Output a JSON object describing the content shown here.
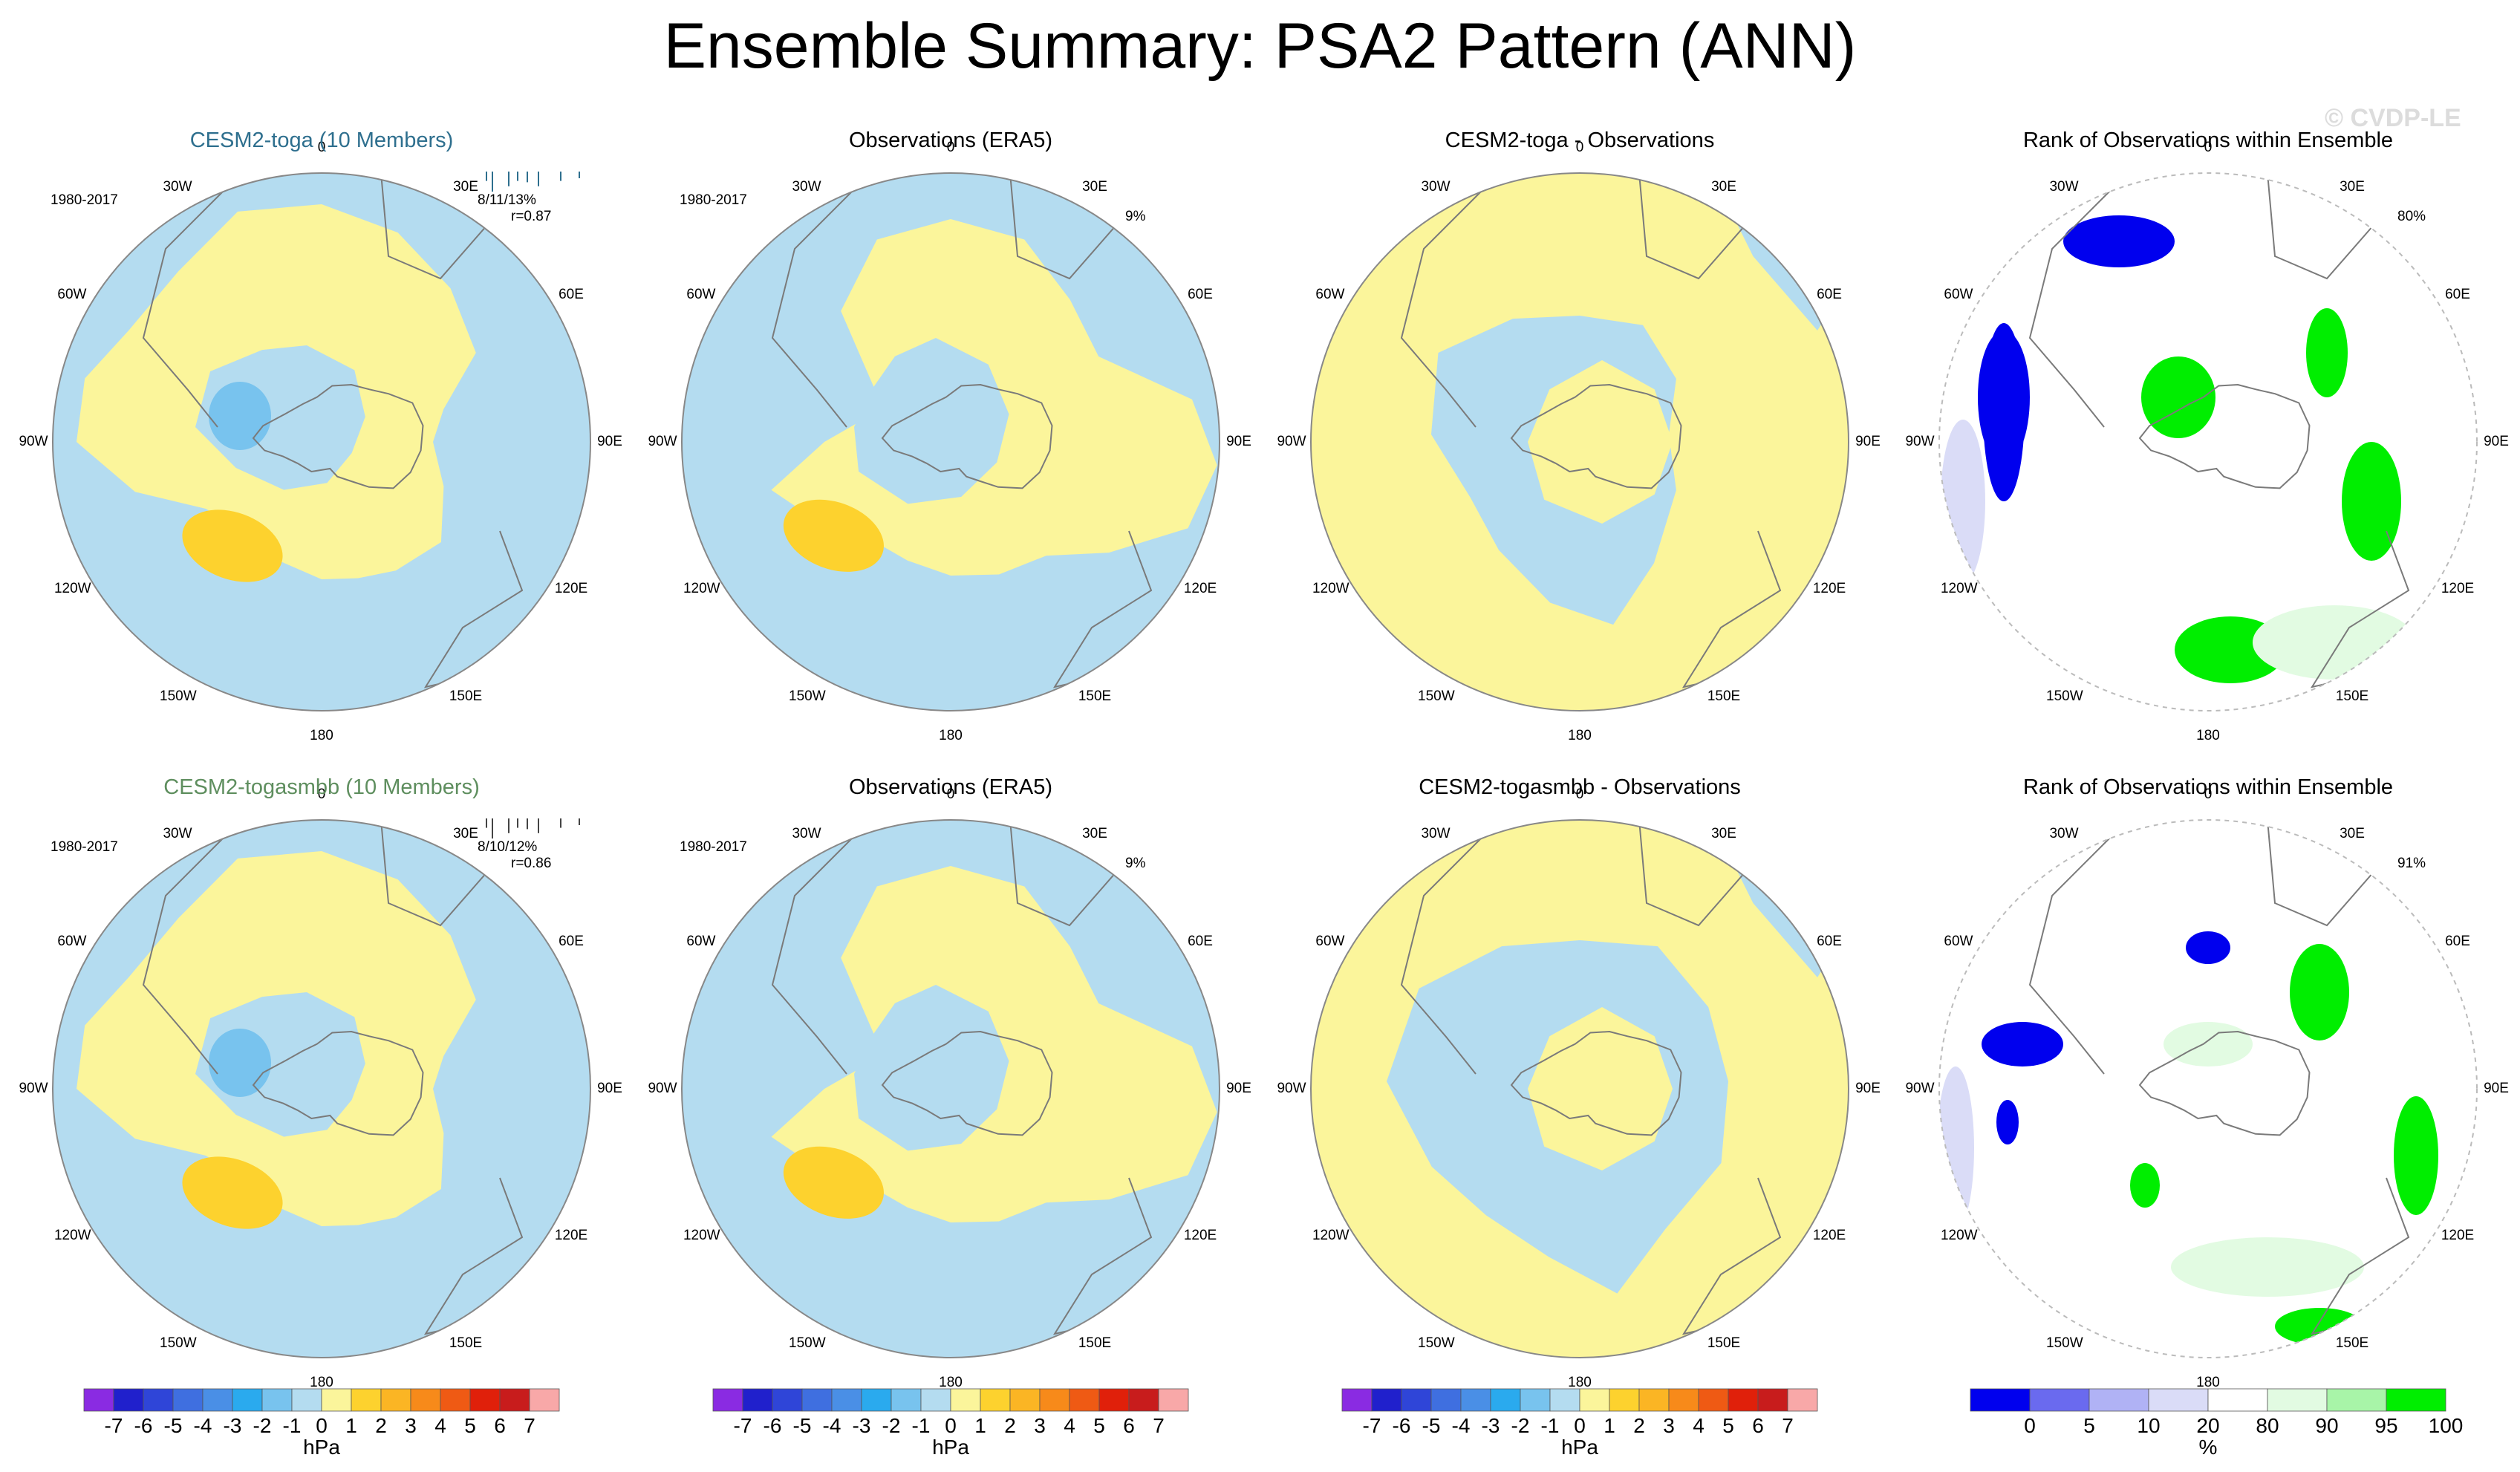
{
  "title": "Ensemble Summary: PSA2 Pattern (ANN)",
  "watermark": "© CVDP-LE",
  "colors": {
    "ocean_neg1": "#b4dcf0",
    "pos1": "#fbf59b",
    "neg2": "#78c3ee",
    "pos3": "#fdd22e",
    "coast": "#7a7a7a",
    "rank_blue": "#0000ee",
    "rank_lightblue": "#dadcf7",
    "rank_green": "#00ee00",
    "rank_lightgreen": "#e2fbe2",
    "toga_title": "#2e6f8e",
    "smbb_title": "#5e8e5e"
  },
  "longitude_labels": [
    "0",
    "30E",
    "60E",
    "90E",
    "120E",
    "150E",
    "180",
    "150W",
    "120W",
    "90W",
    "60W",
    "30W"
  ],
  "rows": [
    {
      "panels": [
        {
          "kind": "model",
          "title": "CESM2-toga (10 Members)",
          "period": "1980-2017",
          "stats": "8/11/13%",
          "corr": "r=0.87"
        },
        {
          "kind": "obs",
          "title": "Observations (ERA5)",
          "period": "1980-2017",
          "pct": "9%"
        },
        {
          "kind": "diff",
          "title": "CESM2-toga - Observations"
        },
        {
          "kind": "rank",
          "title": "Rank of Observations within Ensemble",
          "pct": "80%"
        }
      ]
    },
    {
      "panels": [
        {
          "kind": "model",
          "title": "CESM2-togasmbb (10 Members)",
          "period": "1980-2017",
          "stats": "8/10/12%",
          "corr": "r=0.86"
        },
        {
          "kind": "obs",
          "title": "Observations (ERA5)",
          "period": "1980-2017",
          "pct": "9%"
        },
        {
          "kind": "diff",
          "title": "CESM2-togasmbb - Observations"
        },
        {
          "kind": "rank",
          "title": "Rank of Observations within Ensemble",
          "pct": "91%"
        }
      ]
    }
  ],
  "chart_data": [
    {
      "type": "heatmap",
      "title": "CESM2-toga (10 Members)",
      "projection": "south polar stereographic",
      "units": "hPa",
      "levels": [
        -7,
        -6,
        -5,
        -4,
        -3,
        -2,
        -1,
        0,
        1,
        2,
        3,
        4,
        5,
        6,
        7
      ],
      "period": "1980-2017",
      "stats": "8/11/13%",
      "pattern_correlation": 0.87,
      "features": [
        {
          "region": "Amundsen / Bellingshausen low",
          "value_range": [
            -2,
            -1
          ]
        },
        {
          "region": "South Pacific high (150W-120W)",
          "value_range": [
            2,
            3
          ]
        }
      ]
    },
    {
      "type": "heatmap",
      "title": "Observations (ERA5)",
      "projection": "south polar stereographic",
      "units": "hPa",
      "period": "1980-2017",
      "variance_explained_pct": 9,
      "features": [
        {
          "region": "South Pacific high",
          "value_range": [
            2,
            3
          ]
        },
        {
          "region": "Southern Ocean ring",
          "value_range": [
            -1,
            0
          ]
        }
      ]
    },
    {
      "type": "heatmap",
      "title": "CESM2-toga - Observations",
      "projection": "south polar stereographic",
      "units": "hPa",
      "value_range": [
        -1,
        1
      ]
    },
    {
      "type": "heatmap",
      "title": "Rank of Observations within Ensemble",
      "units": "%",
      "levels": [
        0,
        5,
        10,
        20,
        80,
        90,
        95,
        100
      ],
      "pct_area_within_10_90": 80
    },
    {
      "type": "heatmap",
      "title": "CESM2-togasmbb (10 Members)",
      "projection": "south polar stereographic",
      "units": "hPa",
      "period": "1980-2017",
      "stats": "8/10/12%",
      "pattern_correlation": 0.86
    },
    {
      "type": "heatmap",
      "title": "Observations (ERA5)",
      "projection": "south polar stereographic",
      "units": "hPa",
      "period": "1980-2017",
      "variance_explained_pct": 9
    },
    {
      "type": "heatmap",
      "title": "CESM2-togasmbb - Observations",
      "projection": "south polar stereographic",
      "units": "hPa",
      "value_range": [
        -1,
        1
      ]
    },
    {
      "type": "heatmap",
      "title": "Rank of Observations within Ensemble",
      "units": "%",
      "levels": [
        0,
        5,
        10,
        20,
        80,
        90,
        95,
        100
      ],
      "pct_area_within_10_90": 91
    }
  ],
  "colorbars": {
    "hpa": {
      "unit": "hPa",
      "labels": [
        "-7",
        "-6",
        "-5",
        "-4",
        "-3",
        "-2",
        "-1",
        "0",
        "1",
        "2",
        "3",
        "4",
        "5",
        "6",
        "7"
      ],
      "colors": [
        "#8a2be2",
        "#2020cc",
        "#2f45d8",
        "#3f6fe0",
        "#4a8fe6",
        "#2aaaee",
        "#78c3ee",
        "#b4dcf0",
        "#fbf59b",
        "#fdd22e",
        "#fbb524",
        "#f78a1a",
        "#ef5a14",
        "#e0200a",
        "#c81c1c",
        "#f8a8a8"
      ]
    },
    "rank": {
      "unit": "%",
      "labels": [
        "0",
        "5",
        "10",
        "20",
        "80",
        "90",
        "95",
        "100"
      ],
      "colors": [
        "#0000ee",
        "#6a6aef",
        "#b0b2f5",
        "#dadcf7",
        "#ffffff",
        "#e2fbe2",
        "#a8f5a8",
        "#00ee00"
      ]
    }
  }
}
